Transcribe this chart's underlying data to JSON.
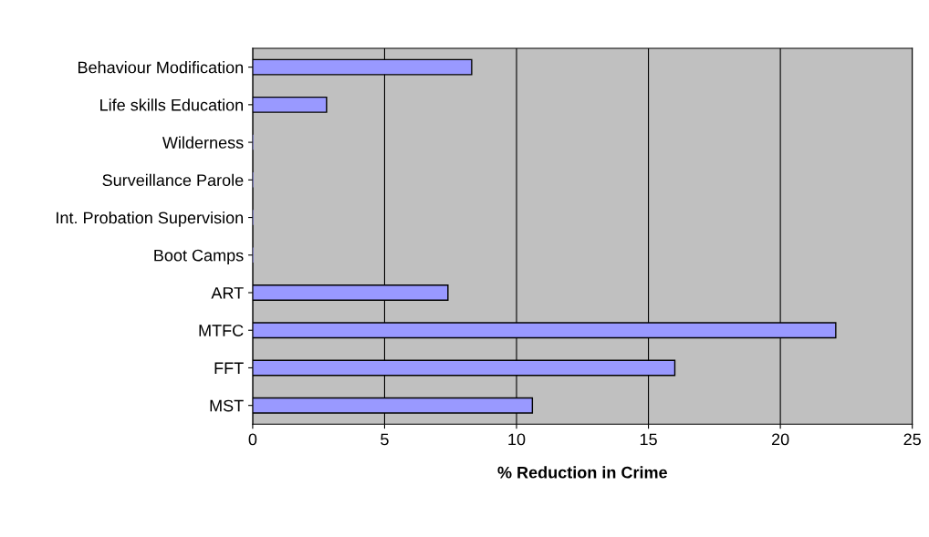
{
  "chart_data": {
    "type": "bar",
    "orientation": "horizontal",
    "xlabel": "% Reduction in Crime",
    "categories": [
      "Behaviour Modification",
      "Life skills Education",
      "Wilderness",
      "Surveillance Parole",
      "Int. Probation Supervision",
      "Boot Camps",
      "ART",
      "MTFC",
      "FFT",
      "MST"
    ],
    "values": [
      8.3,
      2.8,
      0,
      0,
      0,
      0,
      7.4,
      22.1,
      16.0,
      10.6
    ],
    "color": "#9999ff",
    "xlim": [
      0,
      25
    ],
    "xticks": [
      0,
      5,
      10,
      15,
      20,
      25
    ],
    "grid": "x"
  }
}
